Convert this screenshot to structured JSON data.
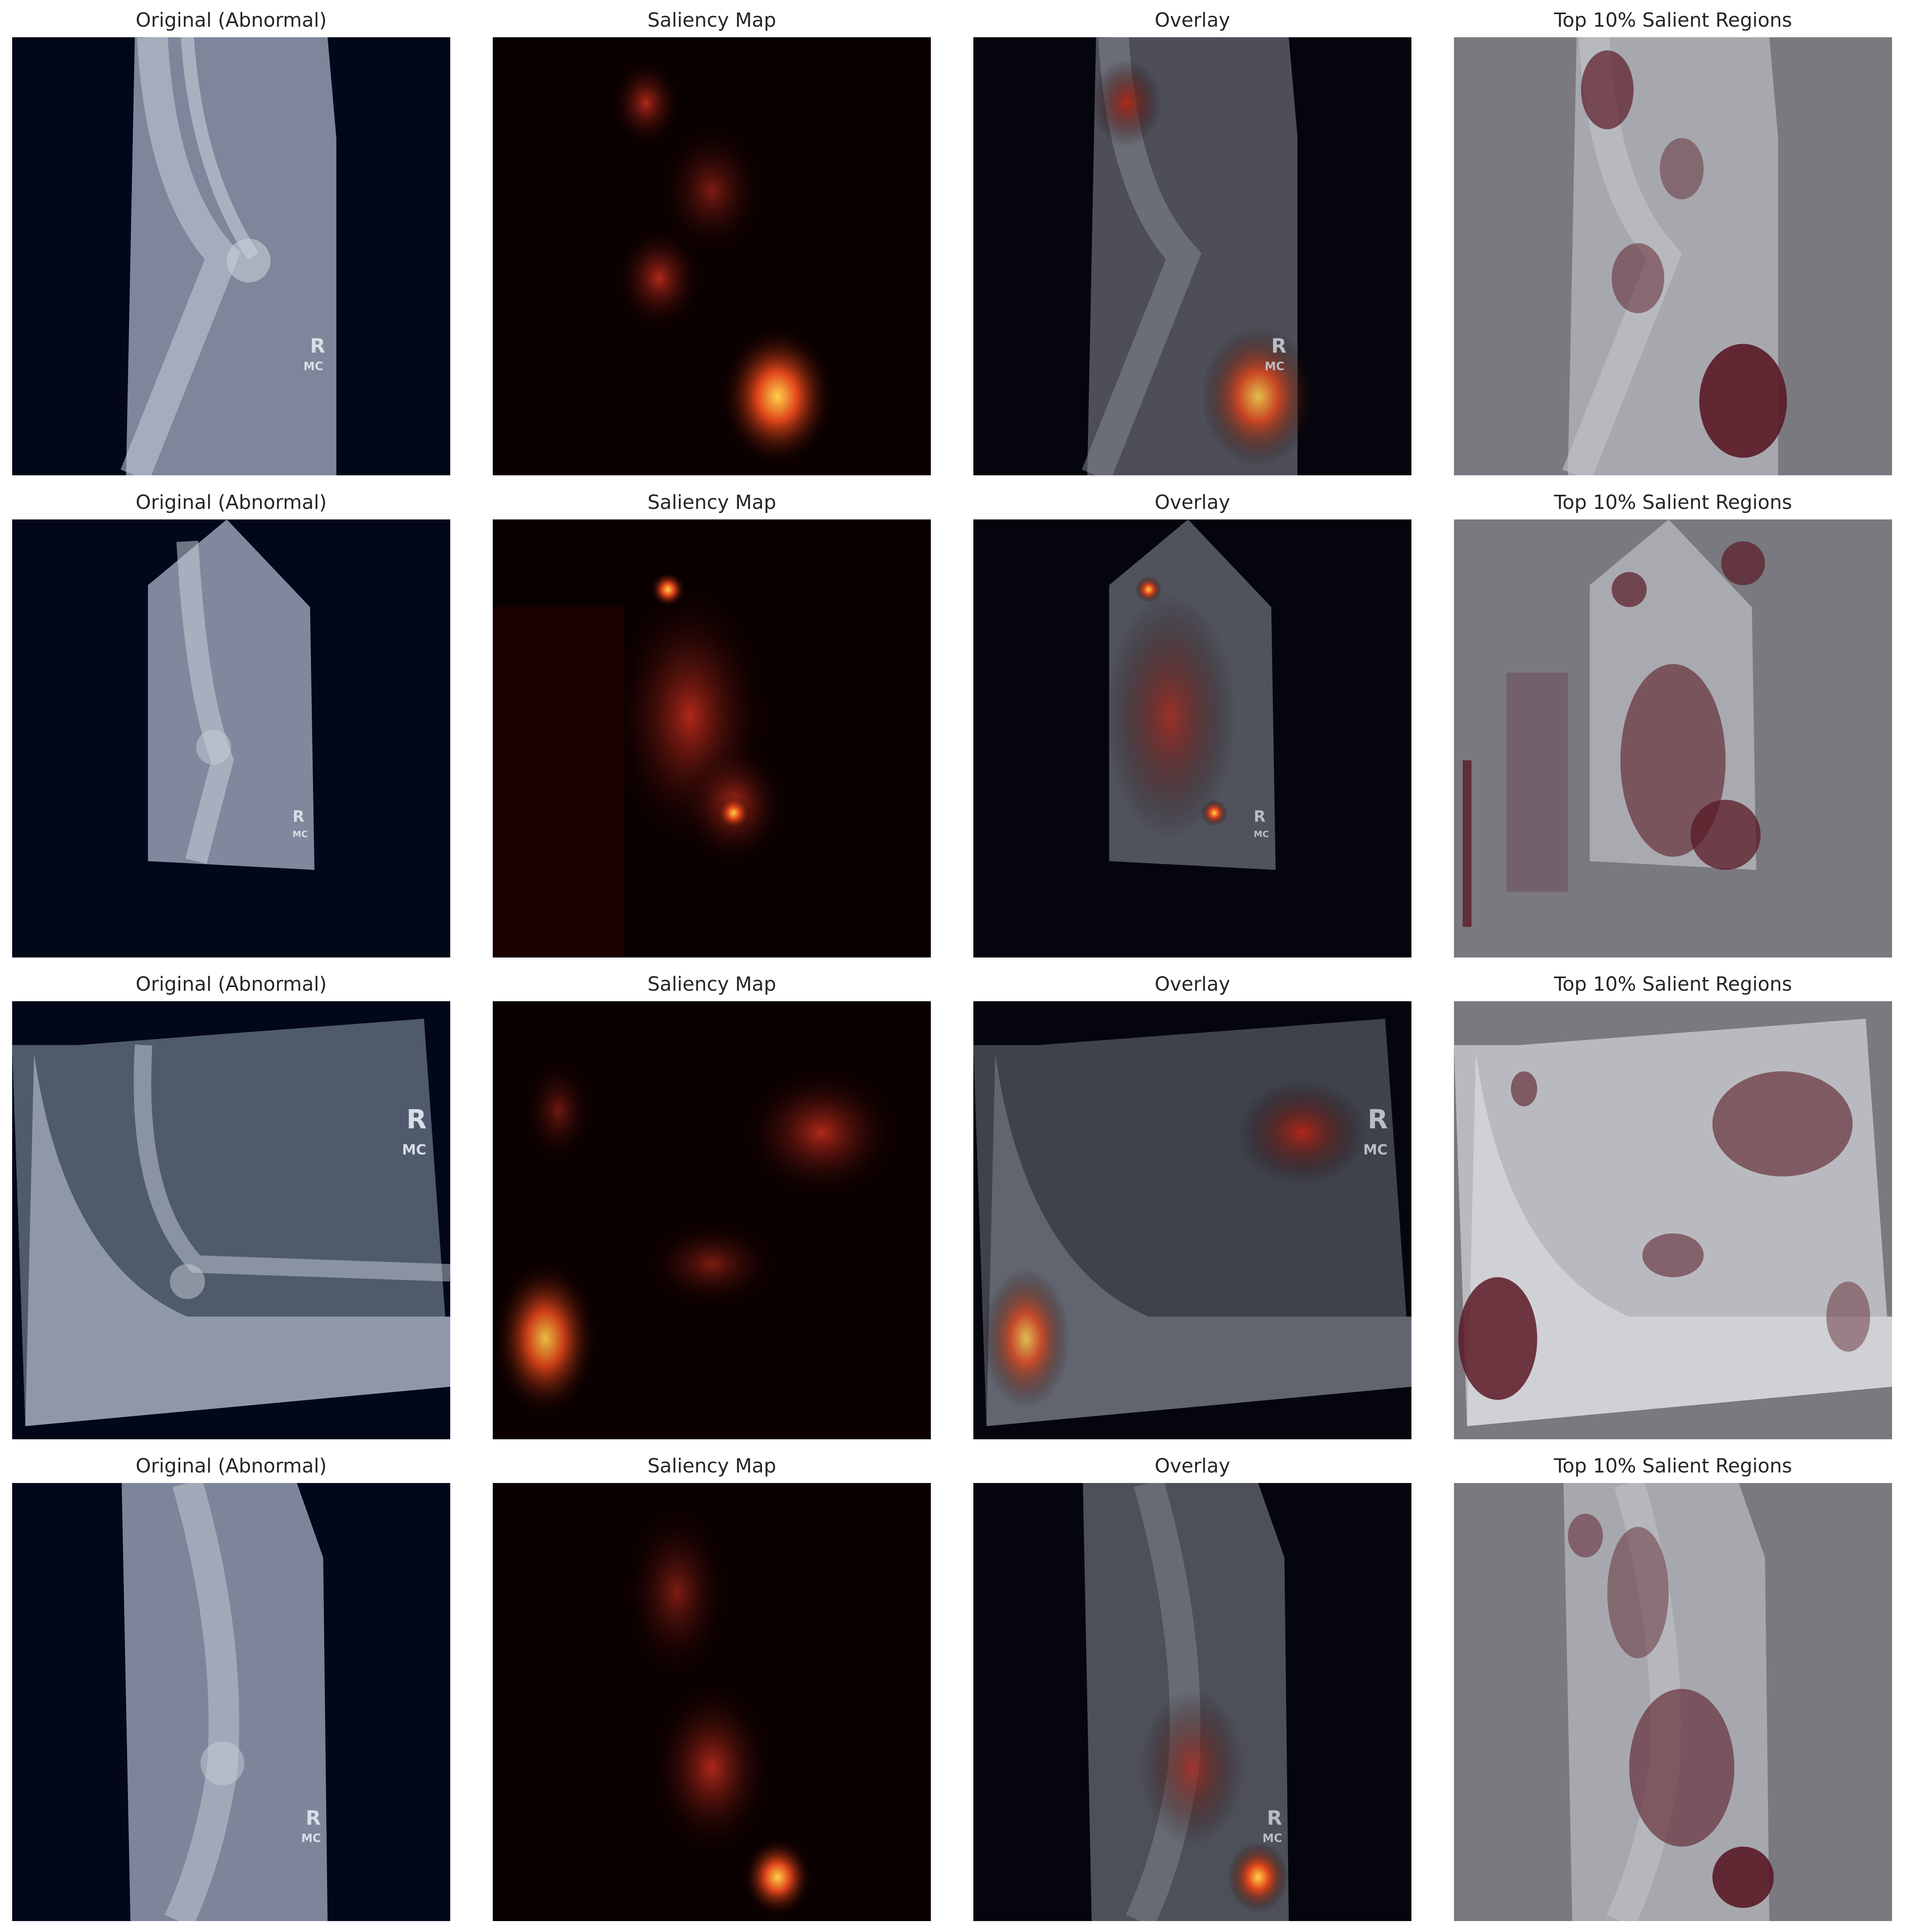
{
  "figure": {
    "column_titles": [
      "Original (Abnormal)",
      "Saliency Map",
      "Overlay",
      "Top 10% Salient Regions"
    ],
    "rows": [
      {
        "cells": [
          {
            "title": "Original (Abnormal)"
          },
          {
            "title": "Saliency Map"
          },
          {
            "title": "Overlay"
          },
          {
            "title": "Top 10% Salient Regions"
          }
        ]
      },
      {
        "cells": [
          {
            "title": "Original (Abnormal)"
          },
          {
            "title": "Saliency Map"
          },
          {
            "title": "Overlay"
          },
          {
            "title": "Top 10% Salient Regions"
          }
        ]
      },
      {
        "cells": [
          {
            "title": "Original (Abnormal)"
          },
          {
            "title": "Saliency Map"
          },
          {
            "title": "Overlay"
          },
          {
            "title": "Top 10% Salient Regions"
          }
        ]
      },
      {
        "cells": [
          {
            "title": "Original (Abnormal)"
          },
          {
            "title": "Saliency Map"
          },
          {
            "title": "Overlay"
          },
          {
            "title": "Top 10% Salient Regions"
          }
        ]
      }
    ],
    "xray_markers": {
      "side": "R",
      "tech": "MC"
    },
    "colors": {
      "xray_background": "#02071a",
      "saliency_background": "#0b0000",
      "saliency_hot": "#ff9a1a",
      "mask_background": "#7a7980",
      "mask_pixel": "#5a1a26"
    }
  }
}
